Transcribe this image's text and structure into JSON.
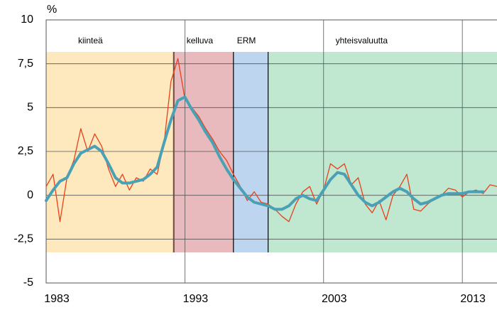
{
  "chart_data": {
    "type": "line",
    "y_unit": "%",
    "xlim": [
      1983,
      2015.5
    ],
    "xticks": [
      1983,
      1993,
      2003,
      2013
    ],
    "ylim": [
      -5,
      10
    ],
    "yticks": [
      {
        "value": -5,
        "label": "-5"
      },
      {
        "value": -2.5,
        "label": "-2,5"
      },
      0,
      {
        "value": 2.5,
        "label": "2,5"
      },
      5,
      {
        "value": 7.5,
        "label": "7,5"
      },
      10
    ],
    "grid": true,
    "regions": [
      {
        "label": "kiinteä",
        "start": 1983,
        "end": 1992.2,
        "color": "#fde9bd"
      },
      {
        "label": "kelluva",
        "start": 1992.2,
        "end": 1996.5,
        "color": "#e8babd"
      },
      {
        "label": "ERM",
        "start": 1996.5,
        "end": 1999,
        "color": "#bdd5ef"
      },
      {
        "label": "yhteisvaluutta",
        "start": 1999,
        "end": 2015.5,
        "color": "#c0e7d0"
      }
    ],
    "x": [
      1983,
      1983.5,
      1984,
      1984.5,
      1985,
      1985.5,
      1986,
      1986.5,
      1987,
      1987.5,
      1988,
      1988.5,
      1989,
      1989.5,
      1990,
      1990.5,
      1991,
      1991.5,
      1992,
      1992.5,
      1993,
      1993.5,
      1994,
      1994.5,
      1995,
      1995.5,
      1996,
      1996.5,
      1997,
      1997.5,
      1998,
      1998.5,
      1999,
      1999.5,
      2000,
      2000.5,
      2001,
      2001.5,
      2002,
      2002.5,
      2003,
      2003.5,
      2004,
      2004.5,
      2005,
      2005.5,
      2006,
      2006.5,
      2007,
      2007.5,
      2008,
      2008.5,
      2009,
      2009.5,
      2010,
      2010.5,
      2011,
      2011.5,
      2012,
      2012.5,
      2013,
      2013.5,
      2014,
      2014.5,
      2015,
      2015.5
    ],
    "series": [
      {
        "color": "#e8401c",
        "width": 1.3,
        "values": [
          0.5,
          1.2,
          -1.5,
          1.0,
          2.0,
          3.8,
          2.5,
          3.5,
          2.8,
          1.5,
          0.5,
          1.2,
          0.3,
          1.0,
          0.8,
          1.5,
          1.2,
          3.0,
          6.5,
          7.8,
          5.5,
          5.0,
          4.5,
          3.8,
          3.2,
          2.5,
          2.0,
          1.2,
          0.5,
          -0.3,
          0.2,
          -0.4,
          -0.5,
          -0.8,
          -1.2,
          -1.5,
          -0.5,
          0.2,
          0.5,
          -0.5,
          0.3,
          1.8,
          1.5,
          1.8,
          0.6,
          1.0,
          -0.5,
          -1.0,
          -0.3,
          -1.4,
          0.0,
          0.5,
          1.2,
          -0.8,
          -0.9,
          -0.5,
          -0.2,
          0.0,
          0.4,
          0.3,
          -0.1,
          0.2,
          0.3,
          0.1,
          0.6,
          0.5
        ]
      },
      {
        "color": "#4aa0b5",
        "width": 4,
        "values": [
          -0.3,
          0.3,
          0.8,
          1.0,
          1.8,
          2.4,
          2.6,
          2.8,
          2.5,
          1.8,
          1.0,
          0.7,
          0.7,
          0.8,
          0.9,
          1.2,
          1.6,
          3.0,
          4.3,
          5.4,
          5.6,
          4.9,
          4.3,
          3.6,
          3.0,
          2.2,
          1.5,
          0.9,
          0.4,
          -0.1,
          -0.4,
          -0.5,
          -0.6,
          -0.8,
          -0.8,
          -0.6,
          -0.2,
          0.0,
          -0.2,
          -0.3,
          0.3,
          0.9,
          1.3,
          1.2,
          0.6,
          0.0,
          -0.4,
          -0.6,
          -0.4,
          -0.1,
          0.2,
          0.4,
          0.2,
          -0.2,
          -0.5,
          -0.4,
          -0.2,
          0.0,
          0.1,
          0.1,
          0.1,
          0.2,
          0.2,
          0.2,
          null,
          null
        ]
      }
    ]
  }
}
